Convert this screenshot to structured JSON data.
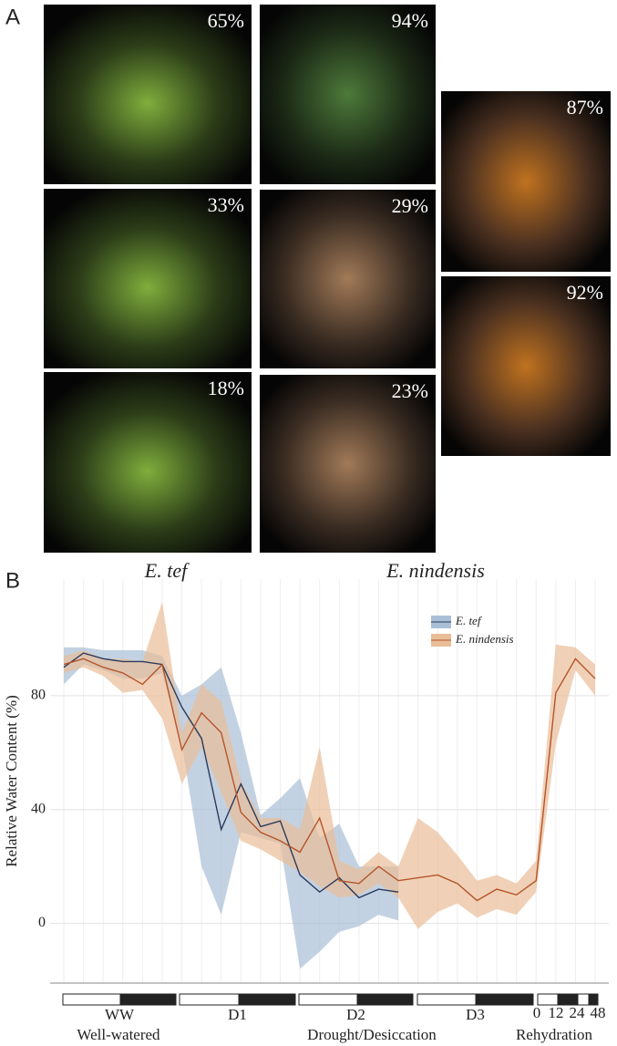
{
  "panel_a": {
    "label": "A",
    "photos": [
      {
        "label": "65%"
      },
      {
        "label": "33%"
      },
      {
        "label": "18%"
      },
      {
        "label": "94%"
      },
      {
        "label": "29%"
      },
      {
        "label": "23%"
      },
      {
        "label": "87%"
      },
      {
        "label": "92%"
      }
    ]
  },
  "chart_data": {
    "type": "line",
    "panel_label": "B",
    "column_titles": [
      "E. tef",
      "E. nindensis"
    ],
    "y_label": "Relative Water Content (%)",
    "categories": [
      null,
      null,
      null,
      null,
      null,
      null,
      null,
      null,
      null,
      null,
      null,
      null,
      null,
      null,
      null,
      null,
      null,
      null,
      null,
      null,
      null,
      null,
      null,
      null,
      null,
      null,
      null,
      null
    ],
    "ylim": [
      -21,
      121
    ],
    "yticks": [
      0,
      40,
      80
    ],
    "grid": true,
    "legend": "top-right",
    "series": [
      {
        "name": "E. tef",
        "color": "#2b3a5c",
        "band_color": "#a9bfd6",
        "values": [
          90,
          95,
          93,
          92,
          92,
          91,
          76,
          65,
          33,
          49,
          34,
          36,
          17,
          11,
          16,
          9,
          12,
          11,
          null,
          null,
          null,
          null,
          null,
          null,
          null,
          null,
          null,
          null
        ],
        "lower": [
          84,
          91,
          89,
          86,
          86,
          88,
          63,
          20,
          3,
          32,
          30,
          28,
          -16,
          -10,
          -3,
          -1,
          3,
          1,
          null,
          null,
          null,
          null,
          null,
          null,
          null,
          null,
          null,
          null
        ],
        "upper": [
          97,
          97,
          96,
          96,
          96,
          94,
          80,
          84,
          90,
          67,
          38,
          44,
          51,
          30,
          35,
          20,
          20,
          20,
          null,
          null,
          null,
          null,
          null,
          null,
          null,
          null,
          null,
          null
        ]
      },
      {
        "name": "E. nindensis",
        "color": "#b5542a",
        "band_color": "#e9bd98",
        "values": [
          91,
          93,
          90,
          88,
          84,
          91,
          61,
          74,
          67,
          39,
          32,
          29,
          25,
          37,
          15,
          14,
          20,
          15,
          16,
          17,
          14,
          8,
          12,
          10,
          15,
          81,
          93,
          86
        ],
        "lower": [
          88,
          90,
          87,
          81,
          82,
          72,
          49,
          62,
          46,
          29,
          26,
          22,
          18,
          13,
          9,
          10,
          14,
          9,
          -2,
          4,
          7,
          2,
          5,
          3,
          11,
          63,
          89,
          80
        ],
        "upper": [
          94,
          96,
          93,
          93,
          92,
          113,
          67,
          84,
          78,
          50,
          37,
          37,
          33,
          62,
          22,
          19,
          25,
          20,
          37,
          32,
          24,
          15,
          17,
          14,
          22,
          98,
          97,
          91
        ]
      }
    ],
    "phases": [
      "WW",
      "D1",
      "D2",
      "D3"
    ],
    "rehydration_hours": [
      "0",
      "12",
      "24",
      "48"
    ],
    "stages": [
      "Well-watered",
      "Drought/Desiccation",
      "Rehydration"
    ]
  }
}
